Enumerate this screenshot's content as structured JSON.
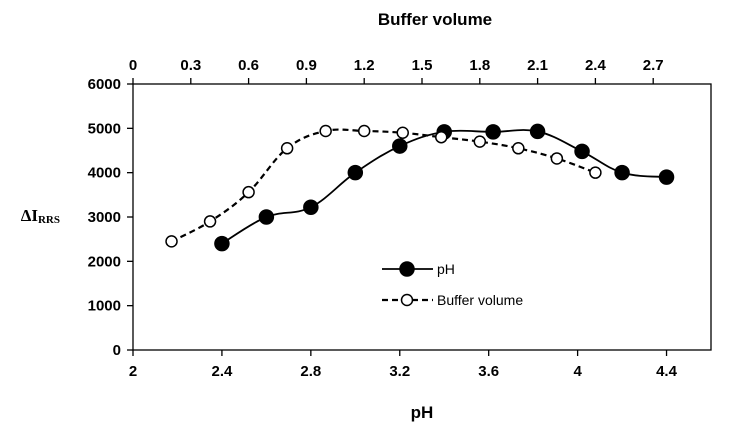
{
  "chart_data": {
    "type": "line",
    "title": "",
    "x_axis": {
      "label": "pH",
      "range": [
        2,
        4.6
      ],
      "ticks": [
        "2",
        "2.4",
        "2.8",
        "3.2",
        "3.6",
        "4",
        "4.4"
      ]
    },
    "x2_axis": {
      "label": "Buffer volume",
      "range": [
        0,
        3.0
      ],
      "ticks": [
        "0",
        "0.3",
        "0.6",
        "0.9",
        "1.2",
        "1.5",
        "1.8",
        "2.1",
        "2.4",
        "2.7"
      ]
    },
    "y_axis": {
      "label_main": "ΔI",
      "label_sub": "RRS",
      "range": [
        0,
        6000
      ],
      "ticks": [
        "0",
        "1000",
        "2000",
        "3000",
        "4000",
        "5000",
        "6000"
      ]
    },
    "grid": false,
    "legend_placement": "center-right",
    "series": [
      {
        "name": "pH",
        "axis": "bottom",
        "style": "solid-filled-marker",
        "color": "#000000",
        "points": [
          [
            2.4,
            2400
          ],
          [
            2.6,
            3000
          ],
          [
            2.8,
            3220
          ],
          [
            3.0,
            4000
          ],
          [
            3.2,
            4600
          ],
          [
            3.4,
            4920
          ],
          [
            3.62,
            4920
          ],
          [
            3.82,
            4930
          ],
          [
            4.02,
            4480
          ],
          [
            4.2,
            4000
          ],
          [
            4.4,
            3900
          ]
        ]
      },
      {
        "name": "Buffer volume",
        "axis": "top",
        "style": "dashed-open-marker",
        "color": "#000000",
        "points": [
          [
            0.2,
            2450
          ],
          [
            0.4,
            2900
          ],
          [
            0.6,
            3560
          ],
          [
            0.8,
            4550
          ],
          [
            1.0,
            4940
          ],
          [
            1.2,
            4940
          ],
          [
            1.4,
            4900
          ],
          [
            1.6,
            4800
          ],
          [
            1.8,
            4700
          ],
          [
            2.0,
            4550
          ],
          [
            2.2,
            4320
          ],
          [
            2.4,
            4000
          ]
        ]
      }
    ]
  }
}
